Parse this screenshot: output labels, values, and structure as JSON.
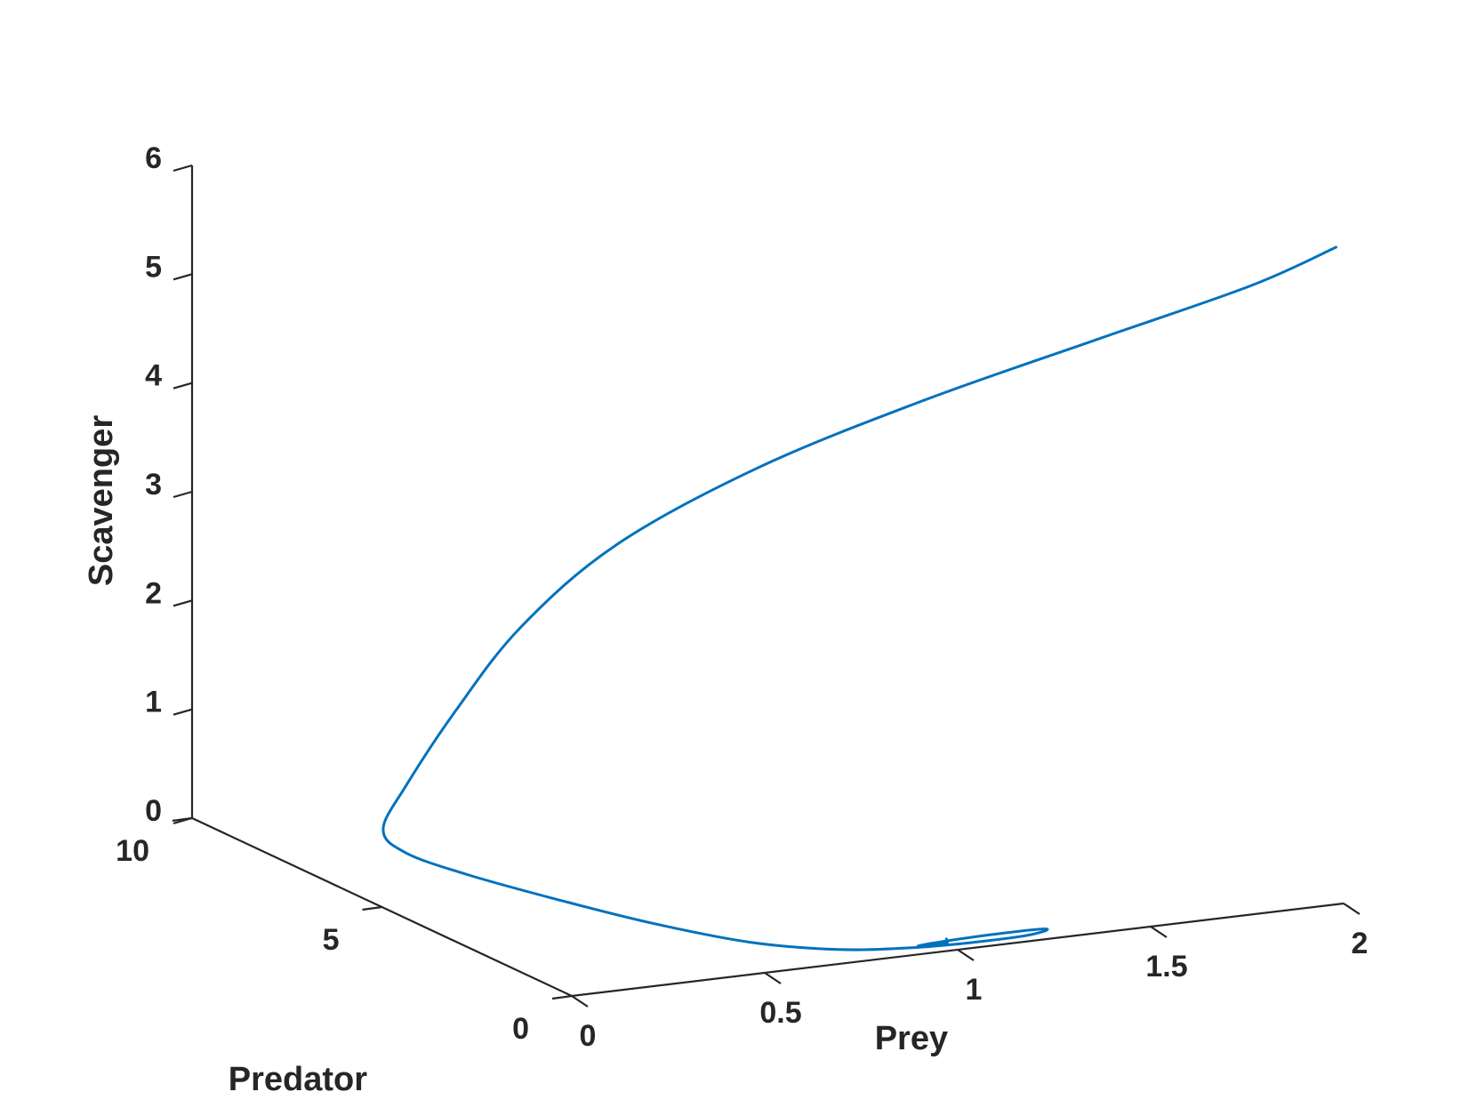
{
  "chart_data": {
    "type": "line",
    "projection": "3d",
    "axes": {
      "x": {
        "label": "Prey",
        "range": [
          0,
          2
        ],
        "ticks": [
          0,
          0.5,
          1,
          1.5,
          2
        ],
        "tick_labels": [
          "0",
          "0.5",
          "1",
          "1.5",
          "2"
        ]
      },
      "y": {
        "label": "Predator",
        "range": [
          0,
          10
        ],
        "ticks": [
          0,
          5,
          10
        ],
        "tick_labels": [
          "0",
          "5",
          "10"
        ]
      },
      "z": {
        "label": "Scavenger",
        "range": [
          0,
          6
        ],
        "ticks": [
          0,
          1,
          2,
          3,
          4,
          5,
          6
        ],
        "tick_labels": [
          "0",
          "1",
          "2",
          "3",
          "4",
          "5",
          "6"
        ]
      }
    },
    "grid": false,
    "series": [
      {
        "color": "#0072BD",
        "points": [
          [
            2.0,
            0.2,
            6.0
          ],
          [
            1.8,
            0.4,
            5.7
          ],
          [
            1.45,
            0.8,
            5.3
          ],
          [
            1.05,
            1.4,
            4.8
          ],
          [
            0.7,
            2.2,
            4.2
          ],
          [
            0.45,
            3.4,
            3.4
          ],
          [
            0.32,
            4.6,
            2.5
          ],
          [
            0.25,
            5.6,
            1.6
          ],
          [
            0.2,
            6.4,
            0.8
          ],
          [
            0.2,
            7.0,
            0.3
          ],
          [
            0.24,
            6.8,
            0.1
          ],
          [
            0.3,
            5.8,
            0.04
          ],
          [
            0.38,
            4.4,
            0.02
          ],
          [
            0.48,
            2.8,
            0.01
          ],
          [
            0.6,
            1.4,
            0.01
          ],
          [
            0.75,
            0.6,
            0.01
          ],
          [
            0.9,
            0.3,
            0.01
          ],
          [
            1.05,
            0.2,
            0.01
          ],
          [
            1.2,
            0.22,
            0.01
          ],
          [
            1.27,
            0.4,
            0.01
          ],
          [
            1.16,
            0.45,
            0.01
          ],
          [
            1.0,
            0.4,
            0.01
          ],
          [
            0.93,
            0.33,
            0.01
          ],
          [
            0.96,
            0.3,
            0.01
          ],
          [
            1.0,
            0.3,
            0.01
          ],
          [
            1.0,
            0.3,
            0.05
          ]
        ]
      }
    ]
  }
}
